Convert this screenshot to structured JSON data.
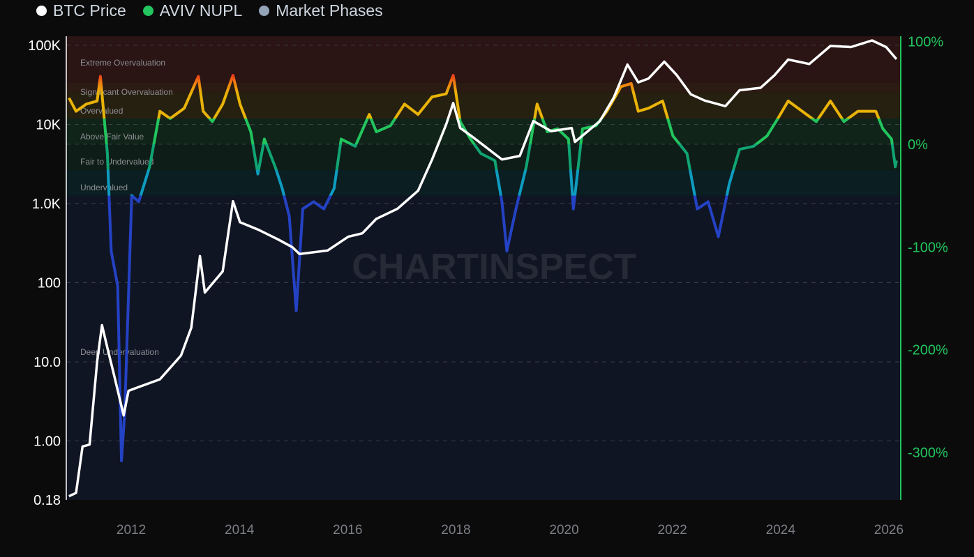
{
  "legend": [
    {
      "label": "BTC Price",
      "color": "#ffffff"
    },
    {
      "label": "AVIV NUPL",
      "color": "#22c55e"
    },
    {
      "label": "Market Phases",
      "color": "#94a3b8"
    }
  ],
  "watermark": "CHARTINSPECT",
  "chart_data": {
    "type": "line",
    "title": "",
    "grid": true,
    "x_axis": {
      "range": [
        2010.8,
        2026.22
      ],
      "ticks": [
        "2012",
        "2014",
        "2016",
        "2018",
        "2020",
        "2022",
        "2024",
        "2026"
      ]
    },
    "left_axis": {
      "scale": "log",
      "range": [
        0.18,
        130000
      ],
      "ticks": [
        {
          "value": 100000,
          "label": "100K"
        },
        {
          "value": 10000,
          "label": "10K"
        },
        {
          "value": 1000,
          "label": "1.0K"
        },
        {
          "value": 100,
          "label": "100"
        },
        {
          "value": 10,
          "label": "10.0"
        },
        {
          "value": 1,
          "label": "1.00"
        },
        {
          "value": 0.18,
          "label": "0.18"
        }
      ]
    },
    "right_axis": {
      "scale": "linear",
      "unit": "%",
      "range": [
        -346,
        105
      ],
      "color": "#22c55e",
      "ticks": [
        {
          "value": 100,
          "label": "100%"
        },
        {
          "value": 0,
          "label": "0%"
        },
        {
          "value": -100,
          "label": "-100%"
        },
        {
          "value": -200,
          "label": "-200%"
        },
        {
          "value": -300,
          "label": "-300%"
        }
      ]
    },
    "market_phases": [
      {
        "label": "Extreme Overvaluation",
        "from": 60,
        "to": 105,
        "color": "#2a1414"
      },
      {
        "label": "Significant Overvaluation",
        "from": 50,
        "to": 60,
        "color": "#2b1b13"
      },
      {
        "label": "Overvalued",
        "from": 25,
        "to": 50,
        "color": "#262010"
      },
      {
        "label": "Above Fair Value",
        "from": 0,
        "to": 25,
        "color": "#112419"
      },
      {
        "label": "Fair to Undervalued",
        "from": -25,
        "to": 0,
        "color": "#0e1d17"
      },
      {
        "label": "Undervalued",
        "from": -50,
        "to": -25,
        "color": "#0b1e22"
      },
      {
        "label": "Deep Undervaluation",
        "from": -346,
        "to": -50,
        "color": "#101524"
      }
    ],
    "series": [
      {
        "name": "BTC Price",
        "axis": "left",
        "color": "#ffffff",
        "points": [
          [
            2010.85,
            0.2
          ],
          [
            2010.98,
            0.22
          ],
          [
            2011.1,
            0.85
          ],
          [
            2011.23,
            0.9
          ],
          [
            2011.37,
            10
          ],
          [
            2011.46,
            29
          ],
          [
            2011.56,
            15
          ],
          [
            2011.69,
            6.5
          ],
          [
            2011.86,
            2.1
          ],
          [
            2011.95,
            4.3
          ],
          [
            2012.14,
            4.8
          ],
          [
            2012.53,
            6
          ],
          [
            2012.92,
            12
          ],
          [
            2013.11,
            27
          ],
          [
            2013.27,
            217
          ],
          [
            2013.36,
            75
          ],
          [
            2013.69,
            139
          ],
          [
            2013.88,
            1070
          ],
          [
            2014.01,
            580
          ],
          [
            2014.34,
            470
          ],
          [
            2014.72,
            350
          ],
          [
            2014.98,
            280
          ],
          [
            2015.11,
            230
          ],
          [
            2015.63,
            255
          ],
          [
            2016.01,
            380
          ],
          [
            2016.27,
            420
          ],
          [
            2016.53,
            640
          ],
          [
            2016.92,
            860
          ],
          [
            2017.3,
            1450
          ],
          [
            2017.56,
            3600
          ],
          [
            2017.82,
            10000
          ],
          [
            2017.95,
            18600
          ],
          [
            2018.08,
            9000
          ],
          [
            2018.34,
            6700
          ],
          [
            2018.85,
            3600
          ],
          [
            2019.18,
            4000
          ],
          [
            2019.43,
            11000
          ],
          [
            2019.76,
            8200
          ],
          [
            2020.14,
            9000
          ],
          [
            2020.2,
            6000
          ],
          [
            2020.66,
            11000
          ],
          [
            2020.92,
            22000
          ],
          [
            2021.17,
            57000
          ],
          [
            2021.37,
            34000
          ],
          [
            2021.56,
            38000
          ],
          [
            2021.85,
            62000
          ],
          [
            2022.08,
            42000
          ],
          [
            2022.34,
            24000
          ],
          [
            2022.6,
            20000
          ],
          [
            2022.98,
            17000
          ],
          [
            2023.24,
            27000
          ],
          [
            2023.63,
            29000
          ],
          [
            2023.89,
            42000
          ],
          [
            2024.14,
            66000
          ],
          [
            2024.53,
            58000
          ],
          [
            2024.92,
            98000
          ],
          [
            2025.3,
            95000
          ],
          [
            2025.69,
            115000
          ],
          [
            2025.95,
            95000
          ],
          [
            2026.14,
            67000
          ]
        ]
      },
      {
        "name": "AVIV NUPL",
        "axis": "right",
        "points": [
          [
            2010.85,
            45
          ],
          [
            2010.98,
            32
          ],
          [
            2011.17,
            39
          ],
          [
            2011.37,
            42
          ],
          [
            2011.43,
            66
          ],
          [
            2011.56,
            -9
          ],
          [
            2011.63,
            -104
          ],
          [
            2011.75,
            -138
          ],
          [
            2011.82,
            -308
          ],
          [
            2011.88,
            -260
          ],
          [
            2012.01,
            -50
          ],
          [
            2012.14,
            -56
          ],
          [
            2012.34,
            -22
          ],
          [
            2012.53,
            32
          ],
          [
            2012.72,
            25
          ],
          [
            2012.98,
            35
          ],
          [
            2013.24,
            66
          ],
          [
            2013.33,
            32
          ],
          [
            2013.5,
            22
          ],
          [
            2013.69,
            39
          ],
          [
            2013.88,
            67
          ],
          [
            2014.01,
            39
          ],
          [
            2014.21,
            12
          ],
          [
            2014.34,
            -29
          ],
          [
            2014.46,
            5
          ],
          [
            2014.66,
            -22
          ],
          [
            2014.79,
            -43
          ],
          [
            2014.92,
            -70
          ],
          [
            2015.05,
            -162
          ],
          [
            2015.17,
            -63
          ],
          [
            2015.37,
            -56
          ],
          [
            2015.56,
            -63
          ],
          [
            2015.75,
            -43
          ],
          [
            2015.88,
            5
          ],
          [
            2016.14,
            -2
          ],
          [
            2016.4,
            29
          ],
          [
            2016.53,
            12
          ],
          [
            2016.79,
            18
          ],
          [
            2017.05,
            39
          ],
          [
            2017.3,
            29
          ],
          [
            2017.56,
            46
          ],
          [
            2017.82,
            49
          ],
          [
            2017.95,
            67
          ],
          [
            2018.08,
            22
          ],
          [
            2018.27,
            5
          ],
          [
            2018.46,
            -9
          ],
          [
            2018.72,
            -16
          ],
          [
            2018.85,
            -56
          ],
          [
            2018.94,
            -104
          ],
          [
            2019.11,
            -63
          ],
          [
            2019.3,
            -22
          ],
          [
            2019.5,
            39
          ],
          [
            2019.69,
            12
          ],
          [
            2019.88,
            15
          ],
          [
            2020.08,
            5
          ],
          [
            2020.17,
            -63
          ],
          [
            2020.34,
            15
          ],
          [
            2020.59,
            18
          ],
          [
            2020.79,
            32
          ],
          [
            2021.05,
            56
          ],
          [
            2021.24,
            59
          ],
          [
            2021.37,
            32
          ],
          [
            2021.56,
            35
          ],
          [
            2021.82,
            42
          ],
          [
            2022.01,
            8
          ],
          [
            2022.27,
            -9
          ],
          [
            2022.46,
            -63
          ],
          [
            2022.66,
            -56
          ],
          [
            2022.85,
            -90
          ],
          [
            2023.05,
            -39
          ],
          [
            2023.24,
            -5
          ],
          [
            2023.5,
            -2
          ],
          [
            2023.75,
            8
          ],
          [
            2023.95,
            25
          ],
          [
            2024.14,
            42
          ],
          [
            2024.4,
            32
          ],
          [
            2024.66,
            22
          ],
          [
            2024.92,
            42
          ],
          [
            2025.17,
            22
          ],
          [
            2025.43,
            32
          ],
          [
            2025.76,
            32
          ],
          [
            2025.89,
            15
          ],
          [
            2026.05,
            5
          ],
          [
            2026.12,
            -22
          ],
          [
            2026.14,
            -16
          ]
        ]
      }
    ]
  }
}
